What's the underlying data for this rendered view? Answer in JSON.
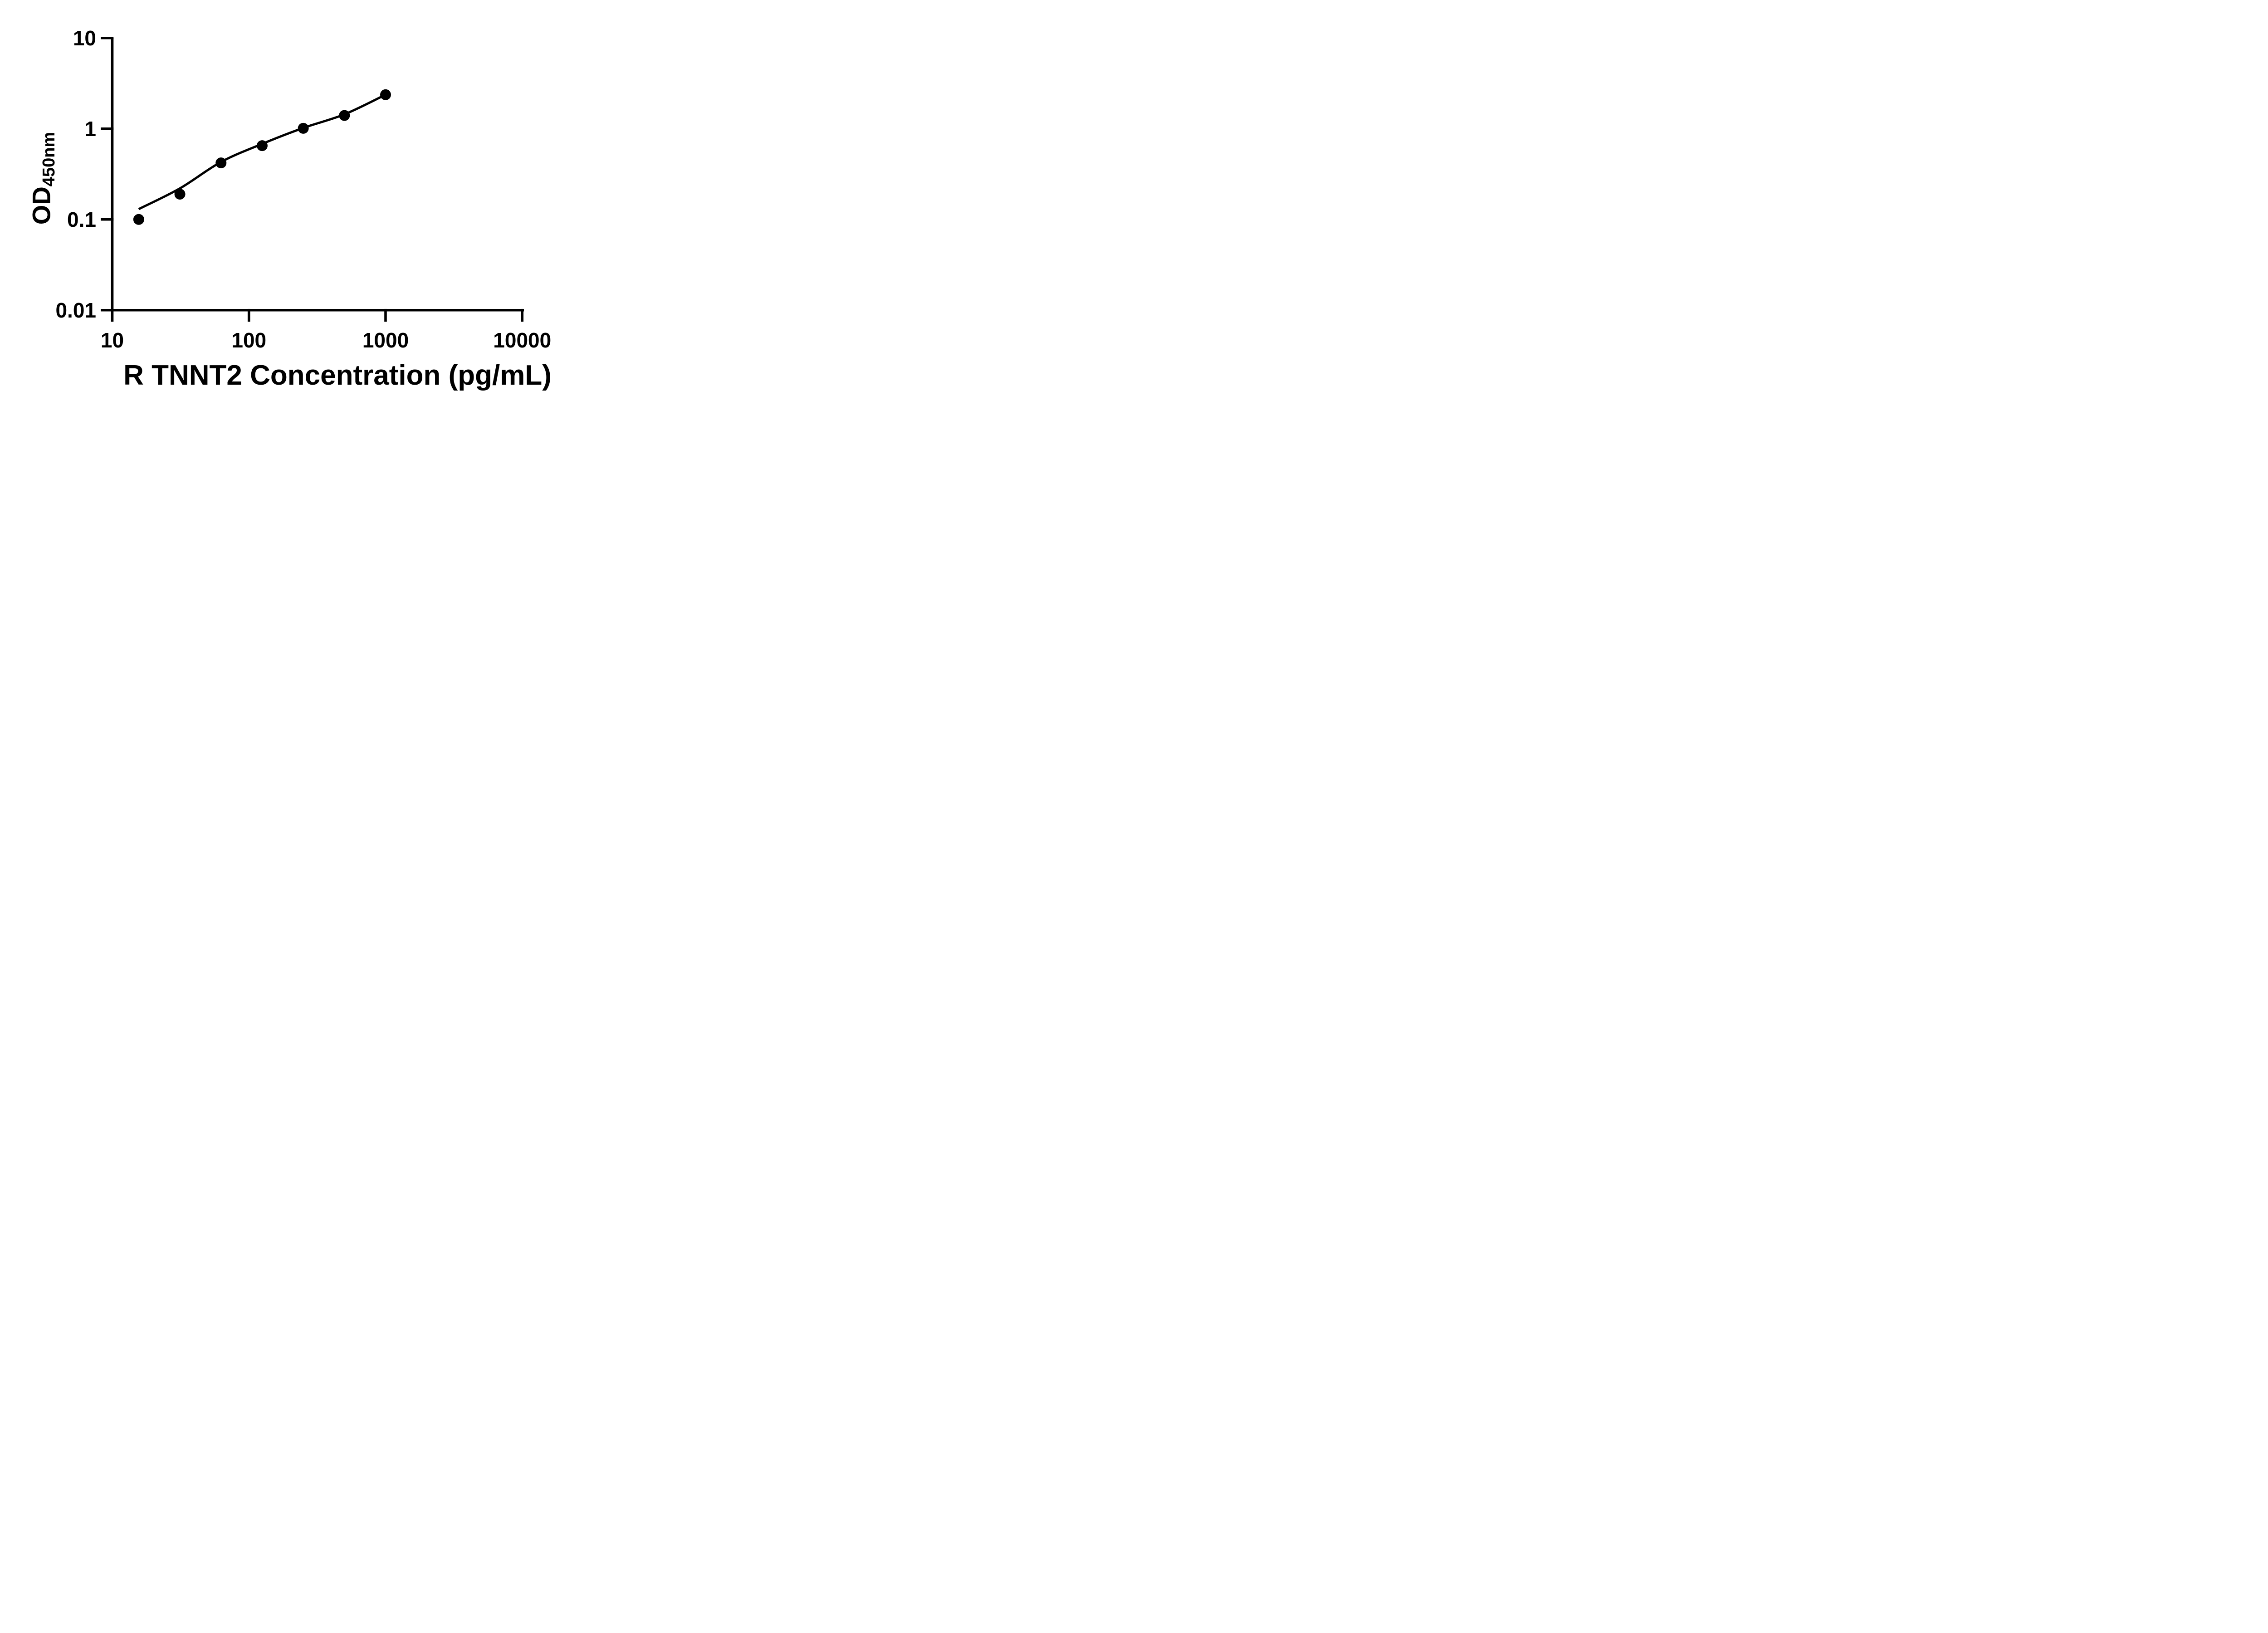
{
  "figure": {
    "background": "#ffffff",
    "ink_color": "#000000"
  },
  "chart_data": {
    "type": "scatter",
    "title": "",
    "xlabel": "R TNNT2 Concentration (pg/mL)",
    "ylabel_main": "OD",
    "ylabel_sub": "450nm",
    "x_scale": "log10",
    "y_scale": "log10",
    "xlim": [
      8.2,
      10000
    ],
    "ylim": [
      0.01,
      10
    ],
    "x_ticks": [
      10,
      100,
      1000,
      10000
    ],
    "x_tick_labels": [
      "10",
      "100",
      "1000",
      "10000"
    ],
    "y_ticks": [
      10,
      1,
      0.1,
      0.01
    ],
    "y_tick_labels": [
      "10",
      "1",
      "0.1",
      "0.01"
    ],
    "grid": false,
    "legend": "none",
    "series": [
      {
        "name": "standard-points",
        "type": "scatter",
        "marker": "filled-circle",
        "color": "#000000",
        "x": [
          15.625,
          31.25,
          62.5,
          125,
          250,
          500,
          1000
        ],
        "y": [
          0.1,
          0.19,
          0.42,
          0.65,
          1.01,
          1.4,
          2.37
        ]
      },
      {
        "name": "fit-curve",
        "type": "line",
        "color": "#000000",
        "x": [
          15.6,
          31.25,
          62.5,
          125,
          250,
          500,
          1000
        ],
        "y": [
          0.13,
          0.22,
          0.43,
          0.68,
          1.02,
          1.44,
          2.37
        ]
      }
    ]
  }
}
